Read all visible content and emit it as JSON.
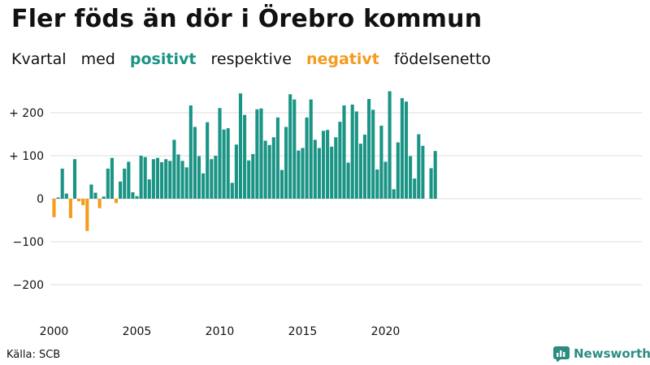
{
  "title": "Fler föds än dör i Örebro kommun",
  "subtitle": {
    "part1": "Kvartal",
    "part2": "med",
    "positive_word": "positivt",
    "part3": "respektive",
    "negative_word": "negativt",
    "part4": "födelsenetto"
  },
  "source": "Källa: SCB",
  "brand": "Newsworthy",
  "colors": {
    "positive": "#1a9485",
    "negative": "#f39c1d",
    "brand": "#2c8c82",
    "grid": "#dddddd"
  },
  "chart_data": {
    "type": "bar",
    "x_start": "2000 Q1",
    "xlabel": "",
    "ylabel": "",
    "ylim": [
      -200,
      260
    ],
    "yticks": [
      {
        "value": 200,
        "label": "+ 200"
      },
      {
        "value": 100,
        "label": "+ 100"
      },
      {
        "value": 0,
        "label": "0"
      },
      {
        "value": -100,
        "label": "−100"
      },
      {
        "value": -200,
        "label": "−200"
      }
    ],
    "xticks": [
      "2000",
      "2005",
      "2010",
      "2015",
      "2020"
    ],
    "values": [
      -43,
      3,
      70,
      12,
      -45,
      92,
      -6,
      -15,
      -75,
      33,
      14,
      -22,
      5,
      70,
      95,
      -10,
      40,
      70,
      86,
      15,
      6,
      100,
      97,
      45,
      92,
      95,
      85,
      92,
      88,
      137,
      103,
      88,
      73,
      217,
      167,
      99,
      59,
      178,
      92,
      100,
      211,
      161,
      164,
      37,
      126,
      245,
      195,
      89,
      104,
      208,
      210,
      135,
      125,
      143,
      189,
      67,
      167,
      243,
      231,
      112,
      118,
      189,
      231,
      137,
      118,
      158,
      160,
      121,
      143,
      179,
      217,
      84,
      219,
      203,
      128,
      149,
      232,
      207,
      68,
      170,
      86,
      250,
      22,
      131,
      234,
      226,
      99,
      47,
      150,
      123,
      0,
      71,
      111
    ]
  }
}
